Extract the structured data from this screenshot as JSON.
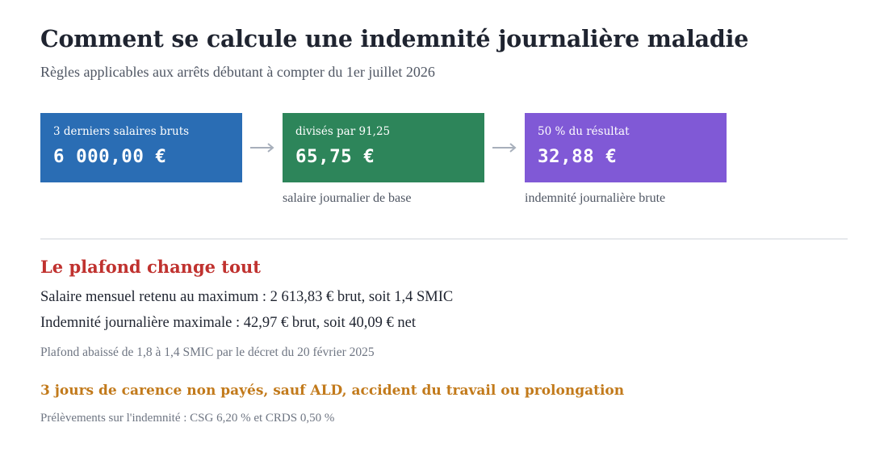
{
  "header": {
    "title": "Comment se calcule une indemnité journalière maladie",
    "subtitle": "Règles applicables aux arrêts débutant à compter du 1er juillet 2026"
  },
  "flow": {
    "steps": [
      {
        "label": "3 derniers salaires bruts",
        "value": "6 000,00 €",
        "caption": "",
        "color": "#2a6db4"
      },
      {
        "label": "divisés par 91,25",
        "value": "65,75 €",
        "caption": "salaire journalier de base",
        "color": "#2d855a"
      },
      {
        "label": "50 % du résultat",
        "value": "32,88 €",
        "caption": "indemnité journalière brute",
        "color": "#8059d6"
      }
    ],
    "arrow_color": "#a7afbb"
  },
  "plafond": {
    "title": "Le plafond change tout",
    "line1": "Salaire mensuel retenu au maximum : 2 613,83 € brut, soit 1,4 SMIC",
    "line2": "Indemnité journalière maximale : 42,97 € brut, soit 40,09 € net",
    "note": "Plafond abaissé de 1,8 à 1,4 SMIC par le décret du 20 février 2025",
    "title_color": "#c0322f"
  },
  "carence": {
    "text": "3 jours de carence non payés, sauf ALD, accident du travail ou prolongation",
    "color": "#c27a1b"
  },
  "prelevements": {
    "text": "Prélèvements sur l'indemnité : CSG 6,20 % et CRDS 0,50 %"
  }
}
